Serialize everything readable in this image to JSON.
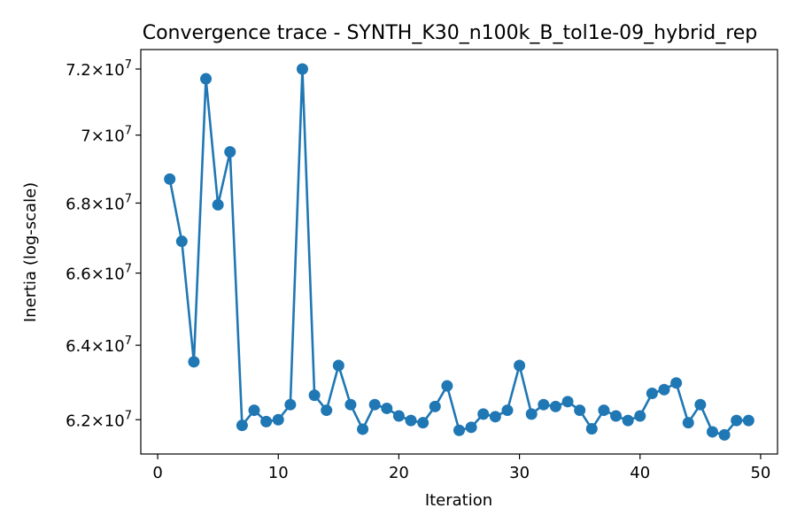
{
  "chart_data": {
    "type": "line",
    "title": "Convergence trace - SYNTH_K30_n100k_B_tol1e-09_hybrid_rep",
    "xlabel": "Iteration",
    "ylabel": "Inertia (log-scale)",
    "y_scale": "log",
    "xlim": [
      -1.4,
      51.4
    ],
    "ylim": [
      61100000,
      72600000
    ],
    "x_ticks": [
      0,
      10,
      20,
      30,
      40,
      50
    ],
    "y_ticks": [
      {
        "value": 62000000,
        "mantissa": "6.2",
        "exp": "7"
      },
      {
        "value": 64000000,
        "mantissa": "6.4",
        "exp": "7"
      },
      {
        "value": 66000000,
        "mantissa": "6.6",
        "exp": "7"
      },
      {
        "value": 68000000,
        "mantissa": "6.8",
        "exp": "7"
      },
      {
        "value": 70000000,
        "mantissa": "7",
        "exp": "7"
      },
      {
        "value": 72000000,
        "mantissa": "7.2",
        "exp": "7"
      }
    ],
    "grid": false,
    "legend": "none",
    "color": "#1f77b4",
    "marker": "circle",
    "series": [
      {
        "x": [
          1,
          2,
          3,
          4,
          5,
          6,
          7,
          8,
          9,
          10,
          11,
          12,
          13,
          14,
          15,
          16,
          17,
          18,
          19,
          20,
          21,
          22,
          23,
          24,
          25,
          26,
          27,
          28,
          29,
          30,
          31,
          32,
          33,
          34,
          35,
          36,
          37,
          38,
          39,
          40,
          41,
          42,
          43,
          44,
          45,
          46,
          47,
          48,
          49
        ],
        "values": [
          68700000,
          66900000,
          63550000,
          71700000,
          67950000,
          69500000,
          61850000,
          62250000,
          61950000,
          62000000,
          62400000,
          72000000,
          62650000,
          62250000,
          63450000,
          62400000,
          61750000,
          62400000,
          62300000,
          62100000,
          61980000,
          61920000,
          62350000,
          62900000,
          61720000,
          61800000,
          62150000,
          62080000,
          62250000,
          63450000,
          62150000,
          62400000,
          62350000,
          62480000,
          62250000,
          61760000,
          62250000,
          62100000,
          61980000,
          62100000,
          62700000,
          62800000,
          62980000,
          61920000,
          62400000,
          61680000,
          61600000,
          61980000,
          61980000
        ]
      }
    ]
  }
}
